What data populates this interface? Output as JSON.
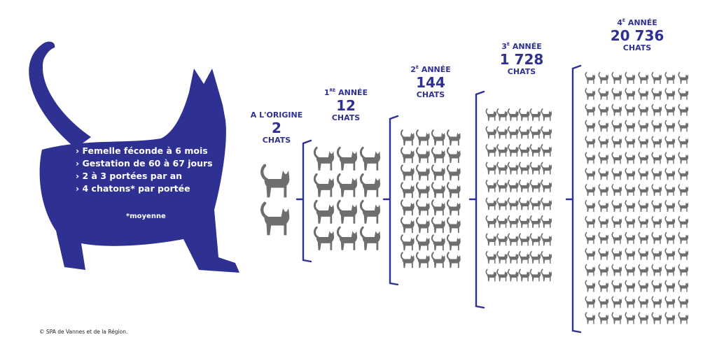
{
  "colors": {
    "primary": "#2e3192",
    "cat_icon": "#6d6e70"
  },
  "facts": [
    "› Femelle féconde à 6 mois",
    "› Gestation de 60 à 67 jours",
    "› 2 à 3 portées par an",
    "› 4 chatons* par portée"
  ],
  "note": "*moyenne",
  "copyright": "© SPA de Vannes et de la Région.",
  "stages": [
    {
      "label": "A L'ORIGINE",
      "ordinal": "",
      "suffix": "",
      "count": "2",
      "unit": "CHATS"
    },
    {
      "label": "ANNÉE",
      "ordinal": "1",
      "suffix": "RE",
      "count": "12",
      "unit": "CHATS"
    },
    {
      "label": "ANNÉE",
      "ordinal": "2",
      "suffix": "E",
      "count": "144",
      "unit": "CHATS"
    },
    {
      "label": "ANNÉE",
      "ordinal": "3",
      "suffix": "E",
      "count": "1 728",
      "unit": "CHATS"
    },
    {
      "label": "ANNÉE",
      "ordinal": "4",
      "suffix": "E",
      "count": "20 736",
      "unit": "CHATS"
    }
  ]
}
